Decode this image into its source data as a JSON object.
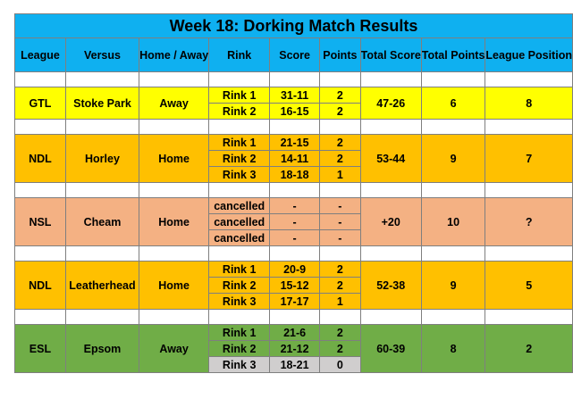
{
  "title": "Week 18: Dorking Match Results",
  "headers": [
    "League",
    "Versus",
    "Home / Away",
    "Rink",
    "Score",
    "Points",
    "Total Score",
    "Total Points",
    "League Position"
  ],
  "matches": [
    {
      "league": "GTL",
      "versus": "Stoke Park",
      "home_away": "Away",
      "total_score": "47-26",
      "total_points": "6",
      "league_position": "8",
      "color": "#ffff00",
      "rinks": [
        {
          "rink": "Rink 1",
          "score": "31-11",
          "points": "2"
        },
        {
          "rink": "Rink 2",
          "score": "16-15",
          "points": "2"
        }
      ]
    },
    {
      "league": "NDL",
      "versus": "Horley",
      "home_away": "Home",
      "total_score": "53-44",
      "total_points": "9",
      "league_position": "7",
      "color": "#ffc000",
      "rinks": [
        {
          "rink": "Rink 1",
          "score": "21-15",
          "points": "2"
        },
        {
          "rink": "Rink 2",
          "score": "14-11",
          "points": "2"
        },
        {
          "rink": "Rink 3",
          "score": "18-18",
          "points": "1"
        }
      ]
    },
    {
      "league": "NSL",
      "versus": "Cheam",
      "home_away": "Home",
      "total_score": "+20",
      "total_points": "10",
      "league_position": "?",
      "color": "#f4b183",
      "rinks": [
        {
          "rink": "cancelled",
          "score": "-",
          "points": "-"
        },
        {
          "rink": "cancelled",
          "score": "-",
          "points": "-"
        },
        {
          "rink": "cancelled",
          "score": "-",
          "points": "-"
        }
      ]
    },
    {
      "league": "NDL",
      "versus": "Leatherhead",
      "home_away": "Home",
      "total_score": "52-38",
      "total_points": "9",
      "league_position": "5",
      "color": "#ffc000",
      "rinks": [
        {
          "rink": "Rink 1",
          "score": "20-9",
          "points": "2"
        },
        {
          "rink": "Rink 2",
          "score": "15-12",
          "points": "2"
        },
        {
          "rink": "Rink 3",
          "score": "17-17",
          "points": "1"
        }
      ]
    },
    {
      "league": "ESL",
      "versus": "Epsom",
      "home_away": "Away",
      "total_score": "60-39",
      "total_points": "8",
      "league_position": "2",
      "color": "#70ad47",
      "lost_color": "#d0cece",
      "rinks": [
        {
          "rink": "Rink 1",
          "score": "21-6",
          "points": "2"
        },
        {
          "rink": "Rink 2",
          "score": "21-12",
          "points": "2"
        },
        {
          "rink": "Rink 3",
          "score": "18-21",
          "points": "0",
          "lost": true
        }
      ]
    }
  ]
}
